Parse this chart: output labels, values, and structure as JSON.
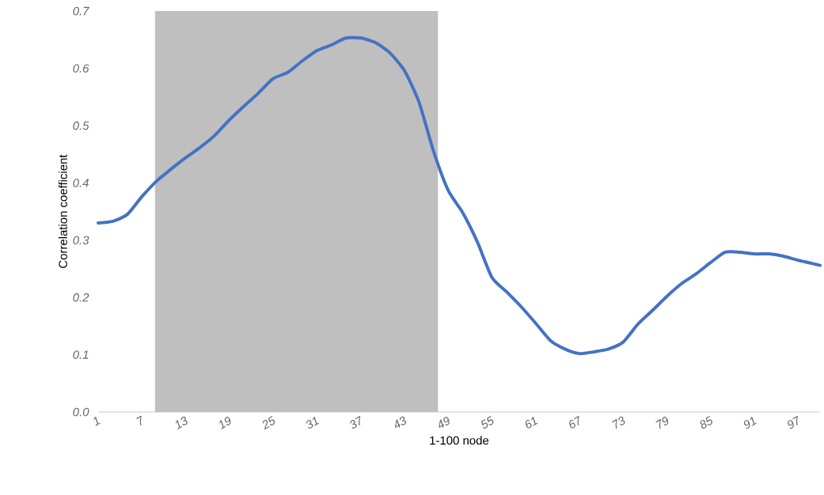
{
  "chart_data": {
    "type": "line",
    "xlabel": "1-100 node",
    "ylabel": "Correlation coefficient",
    "xlim": [
      1,
      100
    ],
    "xticks": [
      1,
      7,
      13,
      19,
      25,
      31,
      37,
      43,
      49,
      55,
      61,
      67,
      73,
      79,
      85,
      91,
      97
    ],
    "ylim": [
      0,
      0.7
    ],
    "yticks": [
      {
        "value": 0,
        "label": "0.0"
      },
      0.1,
      0.2,
      0.3,
      0.4,
      0.5,
      0.6,
      0.7
    ],
    "x": [
      1,
      3,
      5,
      7,
      9,
      11,
      13,
      15,
      17,
      19,
      21,
      23,
      25,
      27,
      29,
      31,
      33,
      35,
      37,
      39,
      41,
      43,
      45,
      47,
      49,
      51,
      53,
      55,
      57,
      59,
      61,
      63,
      65,
      67,
      69,
      71,
      73,
      75,
      77,
      79,
      81,
      83,
      85,
      87,
      89,
      91,
      93,
      95,
      97,
      99,
      100
    ],
    "series": [
      {
        "color": "#4472c4",
        "values": [
          0.33,
          0.333,
          0.345,
          0.376,
          0.403,
          0.424,
          0.444,
          0.462,
          0.483,
          0.51,
          0.534,
          0.557,
          0.582,
          0.593,
          0.613,
          0.631,
          0.641,
          0.653,
          0.653,
          0.645,
          0.627,
          0.596,
          0.541,
          0.455,
          0.387,
          0.348,
          0.297,
          0.235,
          0.21,
          0.184,
          0.155,
          0.125,
          0.11,
          0.102,
          0.105,
          0.11,
          0.122,
          0.153,
          0.177,
          0.202,
          0.224,
          0.241,
          0.261,
          0.279,
          0.279,
          0.276,
          0.276,
          0.272,
          0.265,
          0.259,
          0.256
        ]
      }
    ],
    "bands": [
      {
        "axis": "x",
        "from": 8.8,
        "to": 47.6,
        "color": "#bfbfbf"
      }
    ]
  }
}
